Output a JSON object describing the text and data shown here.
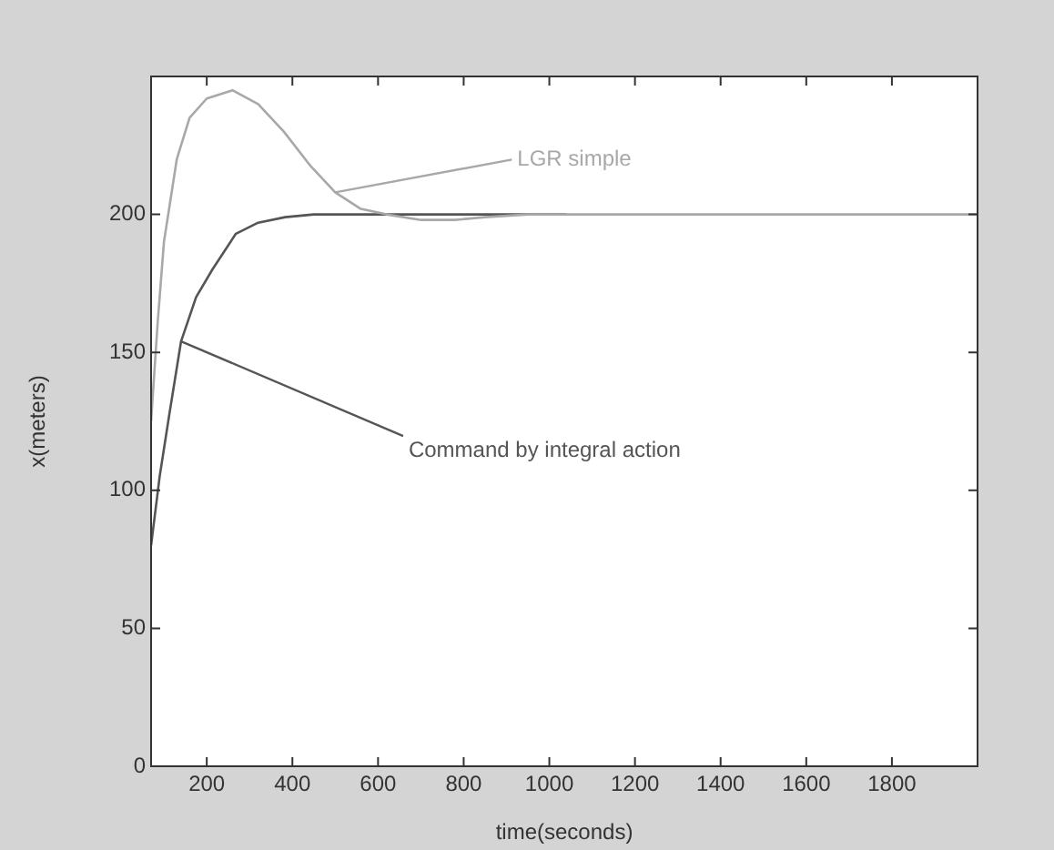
{
  "chart_data": {
    "type": "line",
    "xlabel": "time(seconds)",
    "ylabel": "x(meters)",
    "xlim": [
      70,
      2000
    ],
    "ylim": [
      0,
      250
    ],
    "xticks": [
      200,
      400,
      600,
      800,
      1000,
      1200,
      1400,
      1600,
      1800
    ],
    "yticks": [
      0,
      50,
      100,
      150,
      200
    ],
    "grid": false,
    "legend": false,
    "marker": "none",
    "line_style": "solid",
    "series": [
      {
        "name": "LGR simple",
        "color": "#a8a8a8",
        "x": [
          70,
          85,
          100,
          130,
          160,
          200,
          260,
          320,
          380,
          440,
          500,
          560,
          620,
          700,
          780,
          850,
          950,
          2000
        ],
        "values": [
          125,
          160,
          190,
          220,
          235,
          242,
          245,
          240,
          230,
          218,
          208,
          202,
          200,
          198,
          198,
          199,
          200,
          200
        ]
      },
      {
        "name": "Command by integral action",
        "color": "#555555",
        "x": [
          70,
          90,
          111,
          140,
          175,
          213,
          268,
          320,
          383,
          450,
          520,
          700,
          1040
        ],
        "values": [
          80,
          105,
          126,
          154,
          170,
          180,
          193,
          197,
          199,
          200,
          200,
          200,
          200
        ]
      }
    ]
  }
}
